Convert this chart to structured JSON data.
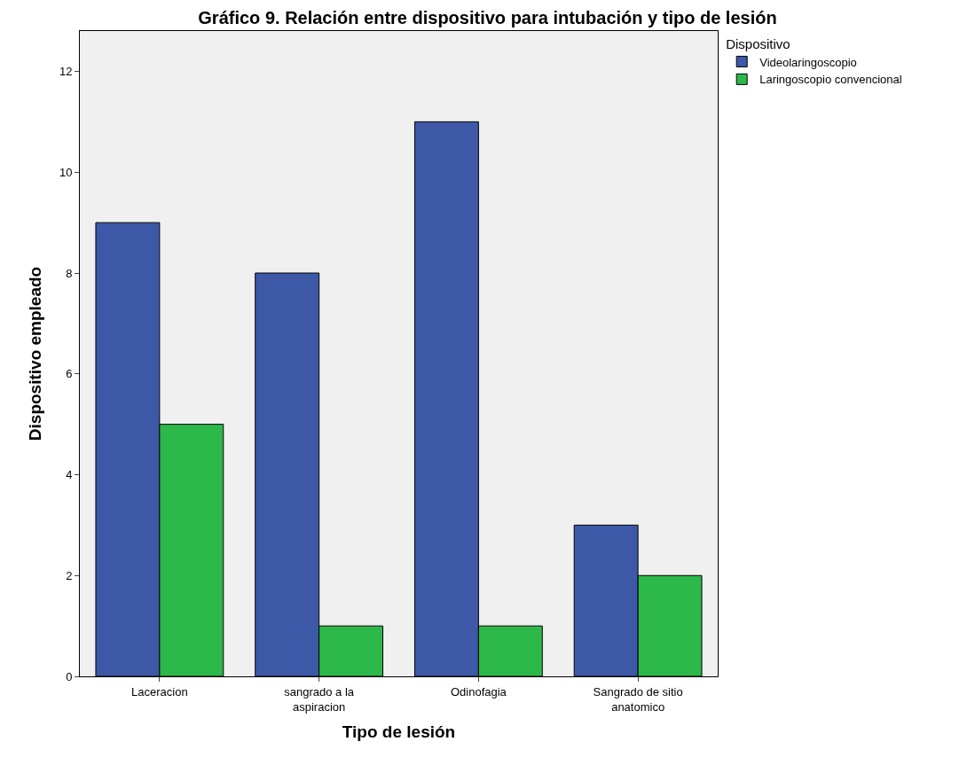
{
  "chart_data": {
    "type": "bar",
    "title": "Gráfico 9. Relación entre dispositivo para intubación y tipo de lesión",
    "xlabel": "Tipo de lesión",
    "ylabel": "Dispositivo empleado",
    "legend_title": "Dispositivo",
    "categories": [
      "Laceracion",
      "sangrado a la aspiracion",
      "Odinofagia",
      "Sangrado de sitio anatomico"
    ],
    "series": [
      {
        "name": "Videolaringoscopio",
        "color": "#3e58a8",
        "values": [
          9,
          8,
          11,
          3
        ]
      },
      {
        "name": "Laringoscopio convencional",
        "color": "#2db84a",
        "values": [
          5,
          1,
          1,
          2
        ]
      }
    ],
    "ylim": [
      0,
      12.8
    ],
    "yticks": [
      0,
      2,
      4,
      6,
      8,
      10,
      12
    ],
    "grid": false,
    "legend": "top right"
  }
}
